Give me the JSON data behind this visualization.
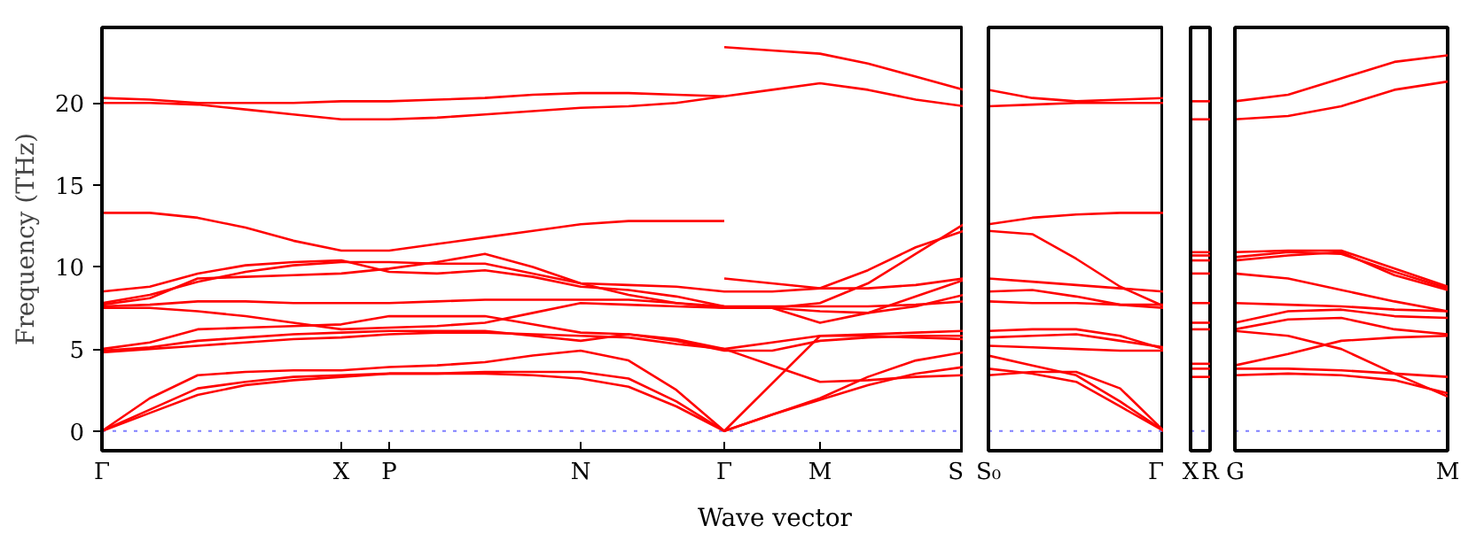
{
  "chart_data": [
    {
      "type": "line",
      "ylabel": "Frequency (THz)",
      "xlabel": "Wave vector",
      "ylim": [
        -1.2,
        24.6
      ],
      "yticks": [
        0,
        5,
        10,
        15,
        20
      ],
      "categories": [
        "Γ",
        null,
        null,
        null,
        null,
        "X",
        "P",
        null,
        null,
        null,
        "N",
        null,
        null,
        "Γ",
        null,
        "M",
        null,
        null,
        "S"
      ],
      "ref_lines": [
        {
          "axis": "y",
          "value": 0,
          "color": "#8080ff",
          "line_style": "dotted"
        }
      ],
      "series": [
        {
          "color": "#ff0000",
          "values": [
            20.3,
            20.2,
            20.0,
            20.0,
            20.0,
            20.1,
            20.1,
            20.2,
            20.3,
            20.5,
            20.6,
            20.6,
            20.5,
            20.4,
            20.8,
            21.2,
            20.8,
            20.2,
            19.8
          ]
        },
        {
          "color": "#ff0000",
          "values": [
            20.0,
            20.0,
            19.9,
            19.6,
            19.3,
            19.0,
            19.0,
            19.1,
            19.3,
            19.5,
            19.7,
            19.8,
            20.0,
            20.4,
            null,
            null,
            null,
            null,
            null
          ]
        },
        {
          "color": "#ff0000",
          "values": [
            null,
            null,
            null,
            null,
            null,
            null,
            null,
            null,
            null,
            null,
            null,
            null,
            null,
            23.4,
            23.2,
            23.0,
            22.4,
            21.6,
            20.8
          ]
        },
        {
          "color": "#ff0000",
          "values": [
            13.3,
            13.3,
            13.0,
            12.4,
            11.6,
            11.0,
            11.0,
            11.4,
            11.8,
            12.2,
            12.6,
            12.8,
            12.8,
            12.8,
            null,
            null,
            null,
            null,
            null
          ]
        },
        {
          "color": "#ff0000",
          "values": [
            8.5,
            8.8,
            9.6,
            10.1,
            10.3,
            10.4,
            9.7,
            9.6,
            9.8,
            9.4,
            8.8,
            8.6,
            8.2,
            7.6,
            7.5,
            7.8,
            9.0,
            10.8,
            12.6
          ]
        },
        {
          "color": "#ff0000",
          "values": [
            7.8,
            8.3,
            9.1,
            9.7,
            10.1,
            10.3,
            10.3,
            10.2,
            10.2,
            9.6,
            9.0,
            8.9,
            8.8,
            8.5,
            8.5,
            8.7,
            9.8,
            11.2,
            12.2
          ]
        },
        {
          "color": "#ff0000",
          "values": [
            null,
            null,
            null,
            null,
            null,
            null,
            null,
            null,
            null,
            null,
            null,
            null,
            null,
            9.3,
            9.0,
            8.7,
            8.7,
            8.9,
            9.3
          ]
        },
        {
          "color": "#ff0000",
          "values": [
            7.7,
            8.1,
            9.3,
            9.4,
            9.5,
            9.6,
            9.9,
            10.3,
            10.8,
            10.0,
            9.0,
            8.3,
            7.8,
            7.5,
            7.5,
            6.6,
            7.2,
            8.2,
            9.2
          ]
        },
        {
          "color": "#ff0000",
          "values": [
            7.6,
            7.7,
            7.9,
            7.9,
            7.8,
            7.8,
            7.8,
            7.9,
            8.0,
            8.0,
            8.0,
            8.0,
            7.8,
            7.6,
            7.6,
            7.6,
            7.6,
            7.7,
            7.9
          ]
        },
        {
          "color": "#ff0000",
          "values": [
            7.5,
            7.5,
            7.3,
            7.0,
            6.6,
            6.2,
            6.3,
            6.4,
            6.6,
            7.2,
            7.8,
            7.7,
            7.6,
            7.5,
            7.5,
            7.3,
            7.2,
            7.6,
            8.3
          ]
        },
        {
          "color": "#ff0000",
          "values": [
            5.0,
            5.4,
            6.2,
            6.3,
            6.4,
            6.5,
            7.0,
            7.0,
            7.0,
            6.5,
            6.0,
            5.9,
            5.5,
            4.9,
            4.9,
            5.5,
            5.7,
            5.8,
            5.8
          ]
        },
        {
          "color": "#ff0000",
          "values": [
            4.9,
            5.1,
            5.5,
            5.7,
            5.9,
            6.0,
            6.1,
            6.1,
            6.1,
            5.8,
            5.5,
            5.9,
            5.6,
            5.0,
            4.0,
            3.0,
            3.1,
            3.3,
            3.4
          ]
        },
        {
          "color": "#ff0000",
          "values": [
            4.8,
            5.0,
            5.2,
            5.4,
            5.6,
            5.7,
            5.9,
            6.0,
            6.0,
            5.9,
            5.8,
            5.7,
            5.3,
            5.0,
            5.4,
            5.8,
            5.9,
            6.0,
            6.1
          ]
        },
        {
          "color": "#ff0000",
          "values": [
            0,
            1.1,
            2.2,
            2.8,
            3.1,
            3.3,
            3.5,
            3.5,
            3.5,
            3.4,
            3.2,
            2.7,
            1.5,
            0,
            1.0,
            1.9,
            2.8,
            3.5,
            3.9
          ]
        },
        {
          "color": "#ff0000",
          "values": [
            0,
            1.3,
            2.6,
            3.0,
            3.3,
            3.4,
            3.5,
            3.5,
            3.6,
            3.6,
            3.6,
            3.2,
            1.8,
            0,
            1.0,
            2.0,
            3.3,
            4.3,
            4.8
          ]
        },
        {
          "color": "#ff0000",
          "values": [
            0,
            2.0,
            3.4,
            3.6,
            3.7,
            3.7,
            3.9,
            4.0,
            4.2,
            4.6,
            4.9,
            4.3,
            2.5,
            0,
            2.9,
            5.8,
            5.8,
            5.7,
            5.6
          ]
        }
      ]
    },
    {
      "type": "line",
      "tick_labels": "x",
      "ylim": [
        -1.2,
        24.6
      ],
      "yticks": [
        0,
        5,
        10,
        15,
        20
      ],
      "categories": [
        "S₀",
        null,
        null,
        null,
        "Γ"
      ],
      "ref_lines": [
        {
          "axis": "y",
          "value": 0,
          "color": "#8080ff",
          "line_style": "dotted"
        }
      ],
      "series": [
        {
          "color": "#ff0000",
          "values": [
            20.8,
            20.3,
            20.1,
            20.2,
            20.3
          ]
        },
        {
          "color": "#ff0000",
          "values": [
            19.8,
            19.9,
            20.0,
            20.0,
            20.0
          ]
        },
        {
          "color": "#ff0000",
          "values": [
            12.6,
            13.0,
            13.2,
            13.3,
            13.3
          ]
        },
        {
          "color": "#ff0000",
          "values": [
            12.2,
            12.0,
            10.5,
            8.8,
            7.6
          ]
        },
        {
          "color": "#ff0000",
          "values": [
            9.3,
            9.1,
            8.9,
            8.7,
            8.5
          ]
        },
        {
          "color": "#ff0000",
          "values": [
            8.5,
            8.6,
            8.2,
            7.7,
            7.5
          ]
        },
        {
          "color": "#ff0000",
          "values": [
            7.9,
            7.8,
            7.8,
            7.7,
            7.7
          ]
        },
        {
          "color": "#ff0000",
          "values": [
            6.1,
            6.2,
            6.2,
            5.8,
            5.0
          ]
        },
        {
          "color": "#ff0000",
          "values": [
            5.7,
            5.8,
            5.9,
            5.5,
            5.1
          ]
        },
        {
          "color": "#ff0000",
          "values": [
            5.2,
            5.1,
            5.0,
            4.9,
            4.9
          ]
        },
        {
          "color": "#ff0000",
          "values": [
            4.6,
            4.0,
            3.4,
            1.8,
            0
          ]
        },
        {
          "color": "#ff0000",
          "values": [
            3.8,
            3.5,
            3.0,
            1.5,
            0
          ]
        },
        {
          "color": "#ff0000",
          "values": [
            3.4,
            3.6,
            3.6,
            2.6,
            0
          ]
        }
      ]
    },
    {
      "type": "line",
      "tick_labels": "x",
      "ylim": [
        -1.2,
        24.6
      ],
      "yticks": [
        0,
        5,
        10,
        15,
        20
      ],
      "categories": [
        "X",
        "R"
      ],
      "ref_lines": [
        {
          "axis": "y",
          "value": 0,
          "color": "#8080ff",
          "line_style": "dotted"
        }
      ],
      "series": [
        {
          "color": "#ff0000",
          "values": [
            20.1,
            20.1
          ]
        },
        {
          "color": "#ff0000",
          "values": [
            19.0,
            19.0
          ]
        },
        {
          "color": "#ff0000",
          "values": [
            10.9,
            10.9
          ]
        },
        {
          "color": "#ff0000",
          "values": [
            10.7,
            10.7
          ]
        },
        {
          "color": "#ff0000",
          "values": [
            10.4,
            10.4
          ]
        },
        {
          "color": "#ff0000",
          "values": [
            9.6,
            9.6
          ]
        },
        {
          "color": "#ff0000",
          "values": [
            7.8,
            7.8
          ]
        },
        {
          "color": "#ff0000",
          "values": [
            6.6,
            6.6
          ]
        },
        {
          "color": "#ff0000",
          "values": [
            6.2,
            6.2
          ]
        },
        {
          "color": "#ff0000",
          "values": [
            4.1,
            4.1
          ]
        },
        {
          "color": "#ff0000",
          "values": [
            3.8,
            3.8
          ]
        },
        {
          "color": "#ff0000",
          "values": [
            3.3,
            3.3
          ]
        }
      ]
    },
    {
      "type": "line",
      "tick_labels": "x",
      "ylim": [
        -1.2,
        24.6
      ],
      "yticks": [
        0,
        5,
        10,
        15,
        20
      ],
      "categories": [
        "G",
        null,
        null,
        null,
        "M"
      ],
      "ref_lines": [
        {
          "axis": "y",
          "value": 0,
          "color": "#8080ff",
          "line_style": "dotted"
        }
      ],
      "series": [
        {
          "color": "#ff0000",
          "values": [
            20.1,
            20.5,
            21.5,
            22.5,
            22.9
          ]
        },
        {
          "color": "#ff0000",
          "values": [
            19.0,
            19.2,
            19.8,
            20.8,
            21.3
          ]
        },
        {
          "color": "#ff0000",
          "values": [
            10.9,
            11.0,
            11.0,
            9.9,
            8.8
          ]
        },
        {
          "color": "#ff0000",
          "values": [
            10.6,
            10.9,
            10.8,
            9.7,
            8.7
          ]
        },
        {
          "color": "#ff0000",
          "values": [
            10.4,
            10.7,
            10.9,
            9.5,
            8.6
          ]
        },
        {
          "color": "#ff0000",
          "values": [
            9.6,
            9.3,
            8.6,
            7.9,
            7.3
          ]
        },
        {
          "color": "#ff0000",
          "values": [
            7.8,
            7.7,
            7.6,
            7.4,
            7.3
          ]
        },
        {
          "color": "#ff0000",
          "values": [
            6.6,
            7.3,
            7.4,
            7.0,
            6.9
          ]
        },
        {
          "color": "#ff0000",
          "values": [
            6.2,
            6.8,
            6.9,
            6.2,
            5.9
          ]
        },
        {
          "color": "#ff0000",
          "values": [
            6.1,
            5.8,
            5.0,
            3.5,
            2.1
          ]
        },
        {
          "color": "#ff0000",
          "values": [
            4.0,
            4.7,
            5.5,
            5.7,
            5.8
          ]
        },
        {
          "color": "#ff0000",
          "values": [
            3.8,
            3.8,
            3.7,
            3.5,
            3.3
          ]
        },
        {
          "color": "#ff0000",
          "values": [
            3.4,
            3.5,
            3.4,
            3.1,
            2.3
          ]
        }
      ]
    }
  ]
}
